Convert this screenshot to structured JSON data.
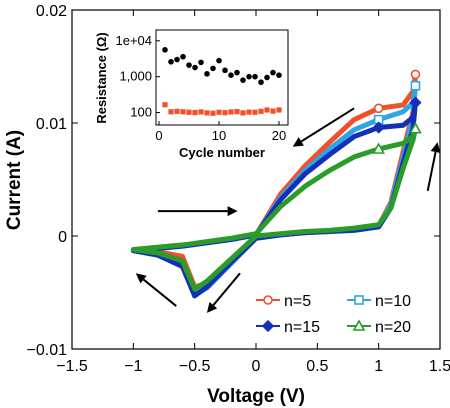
{
  "chart_data": [
    {
      "type": "line",
      "xlabel": "Voltage (V)",
      "ylabel": "Current (A)",
      "xlim": [
        -1.5,
        1.5
      ],
      "ylim": [
        -0.01,
        0.02
      ],
      "xticks": [
        -1.5,
        -1,
        -0.5,
        0,
        0.5,
        1,
        1.5
      ],
      "xtick_labels": [
        "−1.5",
        "−1",
        "−0.5",
        "0",
        "0.5",
        "1",
        "1.5"
      ],
      "yticks": [
        -0.01,
        0,
        0.01,
        0.02
      ],
      "ytick_labels": [
        "−0.01",
        "0",
        "0.01",
        "0.02"
      ],
      "legend_position": "bottom-right",
      "series": [
        {
          "name": "n=5",
          "color": "#f0502a",
          "marker": "circle",
          "x": [
            -1.0,
            -0.8,
            -0.6,
            -0.5,
            -0.4,
            -0.2,
            0.0,
            0.2,
            0.4,
            0.6,
            0.8,
            1.0,
            1.1,
            1.2,
            1.28,
            1.3,
            1.28,
            1.2,
            1.0,
            0.8,
            0.6,
            0.4,
            0.2,
            0.0,
            -0.2,
            -0.4,
            -0.6,
            -0.8,
            -1.0
          ],
          "y": [
            -0.0012,
            -0.0014,
            -0.0018,
            -0.0045,
            -0.0042,
            -0.0022,
            -0.0001,
            0.0001,
            0.0003,
            0.0004,
            0.0006,
            0.0009,
            0.003,
            0.0075,
            0.011,
            0.0143,
            0.0128,
            0.0116,
            0.0113,
            0.0103,
            0.0083,
            0.0062,
            0.0037,
            0.0001,
            -0.0003,
            -0.0006,
            -0.0008,
            -0.001,
            -0.0012
          ]
        },
        {
          "name": "n=10",
          "color": "#2fa5e6",
          "marker": "square",
          "x": [
            -1.0,
            -0.8,
            -0.6,
            -0.5,
            -0.4,
            -0.2,
            0.0,
            0.2,
            0.4,
            0.6,
            0.8,
            1.0,
            1.1,
            1.2,
            1.28,
            1.3,
            1.28,
            1.2,
            1.0,
            0.8,
            0.6,
            0.4,
            0.2,
            0.0,
            -0.2,
            -0.4,
            -0.6,
            -0.8,
            -1.0
          ],
          "y": [
            -0.0013,
            -0.0016,
            -0.0025,
            -0.0052,
            -0.0046,
            -0.0024,
            -0.0002,
            0.0001,
            0.0003,
            0.0004,
            0.0006,
            0.0009,
            0.0028,
            0.007,
            0.0105,
            0.0133,
            0.0118,
            0.011,
            0.0103,
            0.0094,
            0.0077,
            0.0058,
            0.0034,
            0.0001,
            -0.0003,
            -0.0006,
            -0.0009,
            -0.0011,
            -0.0013
          ]
        },
        {
          "name": "n=15",
          "color": "#1530b8",
          "marker": "diamond",
          "x": [
            -1.0,
            -0.8,
            -0.6,
            -0.5,
            -0.4,
            -0.2,
            0.0,
            0.2,
            0.4,
            0.6,
            0.8,
            1.0,
            1.1,
            1.2,
            1.28,
            1.3,
            1.28,
            1.2,
            1.0,
            0.8,
            0.6,
            0.4,
            0.2,
            0.0,
            -0.2,
            -0.4,
            -0.6,
            -0.8,
            -1.0
          ],
          "y": [
            -0.0013,
            -0.0017,
            -0.0027,
            -0.0053,
            -0.0045,
            -0.0023,
            -0.0002,
            0.0001,
            0.0003,
            0.0004,
            0.0005,
            0.0008,
            0.0025,
            0.0065,
            0.0095,
            0.0118,
            0.0105,
            0.0098,
            0.0096,
            0.0088,
            0.0072,
            0.0055,
            0.0032,
            0.0001,
            -0.0003,
            -0.0006,
            -0.0009,
            -0.0011,
            -0.0013
          ]
        },
        {
          "name": "n=20",
          "color": "#2a9c2a",
          "marker": "triangle",
          "x": [
            -1.0,
            -0.8,
            -0.6,
            -0.5,
            -0.4,
            -0.2,
            0.0,
            0.2,
            0.4,
            0.6,
            0.8,
            1.0,
            1.1,
            1.2,
            1.28,
            1.3,
            1.28,
            1.2,
            1.0,
            0.8,
            0.6,
            0.4,
            0.2,
            0.0,
            -0.2,
            -0.4,
            -0.6,
            -0.8,
            -1.0
          ],
          "y": [
            -0.0012,
            -0.0015,
            -0.0022,
            -0.0047,
            -0.004,
            -0.002,
            0.0,
            0.0002,
            0.0004,
            0.0005,
            0.0007,
            0.001,
            0.0025,
            0.006,
            0.0085,
            0.0095,
            0.0088,
            0.0082,
            0.0077,
            0.007,
            0.0058,
            0.0044,
            0.0026,
            0.0002,
            -0.0002,
            -0.0005,
            -0.0008,
            -0.001,
            -0.0012
          ]
        }
      ]
    },
    {
      "type": "scatter",
      "position": "inset-top-left",
      "xlabel": "Cycle number",
      "ylabel": "Resistance (Ω)",
      "xlim": [
        -0.5,
        21.5
      ],
      "ylim": [
        45,
        20000
      ],
      "yscale": "log",
      "xticks": [
        0,
        10,
        20
      ],
      "xtick_labels": [
        "0",
        "10",
        "20"
      ],
      "yticks": [
        100,
        1000,
        10000
      ],
      "ytick_labels": [
        "100",
        "1,000",
        "1e+04"
      ],
      "series": [
        {
          "name": "",
          "color": "#000000",
          "marker": "circle",
          "x": [
            1,
            2,
            3,
            4,
            5,
            6,
            7,
            8,
            9,
            10,
            11,
            12,
            13,
            14,
            15,
            16,
            17,
            18,
            19,
            20
          ],
          "y": [
            5600,
            2600,
            3000,
            3600,
            2100,
            1800,
            2500,
            1200,
            1700,
            2800,
            1500,
            1100,
            1300,
            800,
            1000,
            1000,
            700,
            950,
            1300,
            1100
          ]
        },
        {
          "name": "",
          "color": "#f0502a",
          "marker": "square",
          "x": [
            1,
            2,
            3,
            4,
            5,
            6,
            7,
            8,
            9,
            10,
            11,
            12,
            13,
            14,
            15,
            16,
            17,
            18,
            19,
            20
          ],
          "y": [
            165,
            105,
            108,
            105,
            102,
            100,
            104,
            98,
            96,
            102,
            99,
            104,
            106,
            98,
            103,
            102,
            108,
            118,
            110,
            118
          ]
        }
      ]
    }
  ],
  "arrows": [
    {
      "name": "arrow-sweep-forward-positive",
      "from": [
        -0.8,
        0.0022
      ],
      "to": [
        -0.15,
        0.0022
      ]
    },
    {
      "name": "arrow-sweep-up",
      "from": [
        1.4,
        0.004
      ],
      "to": [
        1.48,
        0.0083
      ]
    },
    {
      "name": "arrow-sweep-back",
      "from": [
        0.8,
        0.0113
      ],
      "to": [
        0.3,
        0.0079
      ]
    },
    {
      "name": "arrow-sweep-negative-down",
      "from": [
        -0.13,
        -0.0033
      ],
      "to": [
        -0.4,
        -0.0068
      ]
    },
    {
      "name": "arrow-sweep-negative-up",
      "from": [
        -0.65,
        -0.0062
      ],
      "to": [
        -0.98,
        -0.0033
      ]
    }
  ]
}
